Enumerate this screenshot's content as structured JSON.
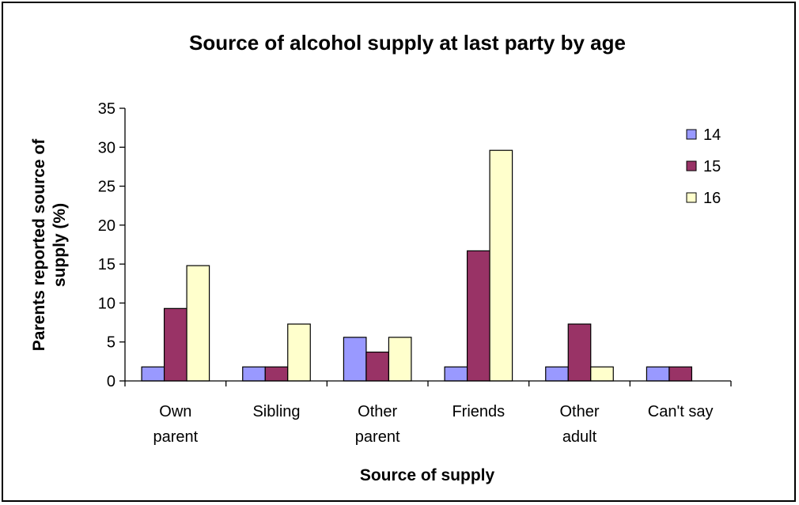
{
  "chart_data": {
    "type": "bar",
    "title": "Source of alcohol supply at last party by age",
    "xlabel": "Source of supply",
    "ylabel_lines": [
      "Parents reported source of",
      "supply (%)"
    ],
    "categories": [
      [
        "Own",
        "parent"
      ],
      [
        "Sibling"
      ],
      [
        "Other",
        "parent"
      ],
      [
        "Friends"
      ],
      [
        "Other",
        "adult"
      ],
      [
        "Can't say"
      ]
    ],
    "series": [
      {
        "name": "14",
        "color": "#9999ff",
        "values": [
          1.8,
          1.8,
          5.6,
          1.8,
          1.8,
          1.8
        ]
      },
      {
        "name": "15",
        "color": "#993366",
        "values": [
          9.3,
          1.8,
          3.7,
          16.7,
          7.3,
          1.8
        ]
      },
      {
        "name": "16",
        "color": "#ffffcc",
        "values": [
          14.8,
          7.3,
          5.6,
          29.6,
          1.8,
          0
        ]
      }
    ],
    "ylim": [
      0,
      35
    ],
    "yticks": [
      "0",
      "5",
      "10",
      "15",
      "20",
      "25",
      "30",
      "35"
    ],
    "grid": false,
    "legend_position": "right"
  }
}
